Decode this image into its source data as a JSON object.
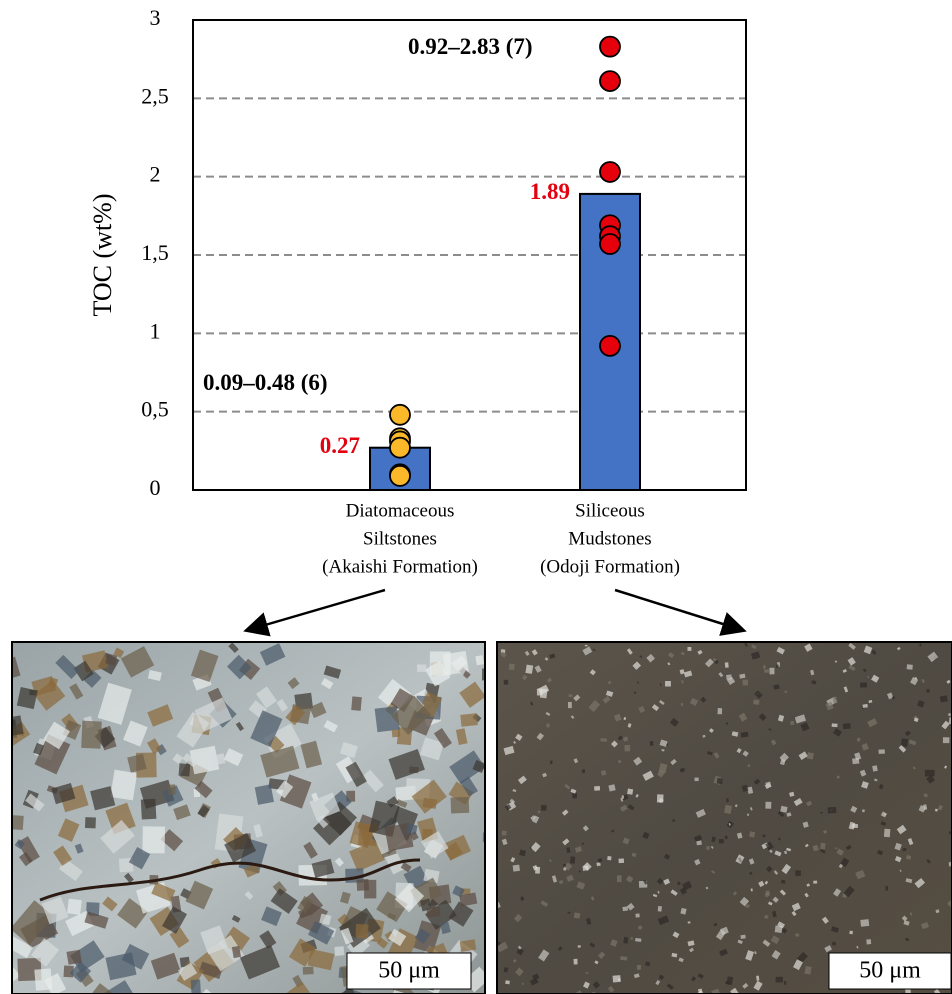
{
  "chart_data": {
    "type": "bar",
    "y_label": "TOC (wt%)",
    "categories": [
      [
        "Diatomaceous",
        "Siltstones",
        "(Akaishi Formation)"
      ],
      [
        "Siliceous",
        "Mudstones",
        "(Odoji Formation)"
      ]
    ],
    "values": [
      0.27,
      1.89
    ],
    "color": "#4472c4",
    "value_label_color": "#e3000f",
    "points": [
      [
        0.48,
        0.33,
        0.31,
        0.27,
        0.1,
        0.09
      ],
      [
        2.83,
        2.61,
        2.03,
        1.69,
        1.62,
        1.57,
        0.92
      ]
    ],
    "point_colors": [
      "#fbb929",
      "#e5000c"
    ],
    "range_labels": [
      "0.09–0.48 (6)",
      "0.92–2.83 (7)"
    ],
    "ylim": [
      0,
      3
    ],
    "yticks": [
      0,
      {
        "value": 0.5,
        "label": "0,5"
      },
      1,
      {
        "value": 1.5,
        "label": "1,5"
      },
      2,
      {
        "value": 2.5,
        "label": "2,5"
      },
      3
    ],
    "grid": true
  },
  "images": [
    {
      "scale_label": "50 μm"
    },
    {
      "scale_label": "50 μm"
    }
  ]
}
